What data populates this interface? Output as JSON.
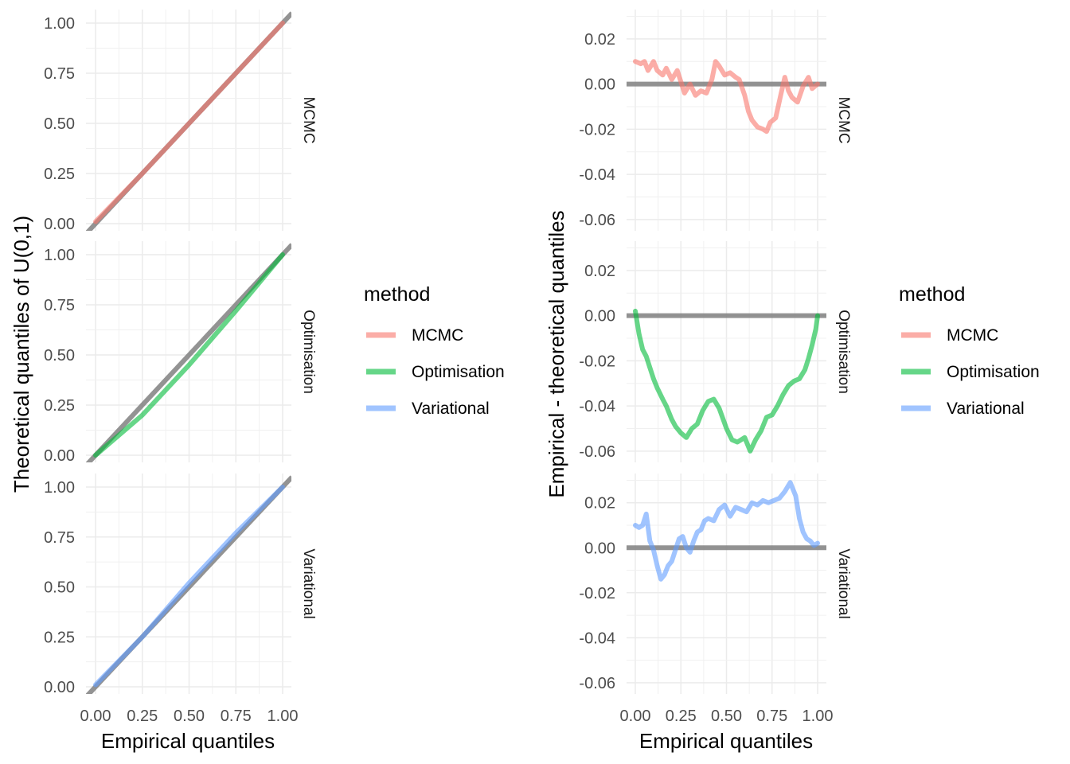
{
  "chart_data": [
    {
      "type": "line",
      "title": "",
      "xlabel": "Empirical quantiles",
      "ylabel": "Theoretical quantiles of U(0,1)",
      "xlim": [
        0,
        1
      ],
      "ylim": [
        0,
        1
      ],
      "x_ticks": [
        "0.00",
        "0.25",
        "0.50",
        "0.75",
        "1.00"
      ],
      "y_ticks": [
        "0.00",
        "0.25",
        "0.50",
        "0.75",
        "1.00"
      ],
      "facets": [
        "MCMC",
        "Optimisation",
        "Variational"
      ],
      "reference_line": "y = x",
      "grid": true,
      "legend": {
        "title": "method",
        "position": "right",
        "entries": [
          "MCMC",
          "Optimisation",
          "Variational"
        ]
      },
      "series": [
        {
          "name": "MCMC",
          "facet": "MCMC",
          "color": "#F8766D",
          "x": [
            0,
            0.25,
            0.5,
            0.75,
            1.0
          ],
          "y": [
            0.01,
            0.25,
            0.5,
            0.75,
            1.0
          ]
        },
        {
          "name": "Optimisation",
          "facet": "Optimisation",
          "color": "#00BA38",
          "x": [
            0,
            0.25,
            0.5,
            0.75,
            1.0
          ],
          "y": [
            0.0,
            0.2,
            0.45,
            0.72,
            1.0
          ]
        },
        {
          "name": "Variational",
          "facet": "Variational",
          "color": "#619CFF",
          "x": [
            0,
            0.25,
            0.5,
            0.75,
            1.0
          ],
          "y": [
            0.01,
            0.25,
            0.52,
            0.77,
            1.0
          ]
        }
      ]
    },
    {
      "type": "line",
      "title": "",
      "xlabel": "Empirical quantiles",
      "ylabel": "Empirical - theoretical quantiles",
      "xlim": [
        0,
        1
      ],
      "ylim": [
        -0.065,
        0.033
      ],
      "x_ticks": [
        "0.00",
        "0.25",
        "0.50",
        "0.75",
        "1.00"
      ],
      "y_ticks": [
        "-0.06",
        "-0.04",
        "-0.02",
        "0.00",
        "0.02"
      ],
      "facets": [
        "MCMC",
        "Optimisation",
        "Variational"
      ],
      "reference_line": "y = 0",
      "grid": true,
      "legend": {
        "title": "method",
        "position": "right",
        "entries": [
          "MCMC",
          "Optimisation",
          "Variational"
        ]
      },
      "series": [
        {
          "name": "MCMC",
          "facet": "MCMC",
          "color": "#F8766D",
          "x": [
            0.0,
            0.03,
            0.05,
            0.07,
            0.1,
            0.12,
            0.15,
            0.17,
            0.2,
            0.23,
            0.25,
            0.27,
            0.3,
            0.33,
            0.36,
            0.39,
            0.42,
            0.44,
            0.46,
            0.49,
            0.52,
            0.55,
            0.57,
            0.6,
            0.62,
            0.64,
            0.67,
            0.7,
            0.72,
            0.74,
            0.77,
            0.8,
            0.82,
            0.84,
            0.86,
            0.89,
            0.92,
            0.95,
            0.97,
            1.0
          ],
          "y": [
            0.01,
            0.009,
            0.01,
            0.006,
            0.01,
            0.006,
            0.004,
            0.007,
            0.002,
            0.006,
            0.001,
            -0.004,
            0.0,
            -0.005,
            -0.003,
            -0.004,
            0.002,
            0.01,
            0.008,
            0.004,
            0.005,
            0.003,
            0.002,
            -0.005,
            -0.012,
            -0.016,
            -0.019,
            -0.02,
            -0.021,
            -0.017,
            -0.015,
            -0.004,
            0.003,
            -0.003,
            -0.006,
            -0.008,
            -0.001,
            0.003,
            -0.002,
            0.0
          ]
        },
        {
          "name": "Optimisation",
          "facet": "Optimisation",
          "color": "#00BA38",
          "x": [
            0.0,
            0.02,
            0.04,
            0.06,
            0.08,
            0.1,
            0.12,
            0.15,
            0.17,
            0.2,
            0.22,
            0.25,
            0.28,
            0.31,
            0.34,
            0.37,
            0.4,
            0.43,
            0.46,
            0.5,
            0.53,
            0.56,
            0.6,
            0.63,
            0.66,
            0.69,
            0.72,
            0.75,
            0.78,
            0.81,
            0.84,
            0.87,
            0.9,
            0.93,
            0.95,
            0.97,
            0.99,
            1.0
          ],
          "y": [
            0.002,
            -0.008,
            -0.015,
            -0.018,
            -0.023,
            -0.028,
            -0.032,
            -0.037,
            -0.04,
            -0.046,
            -0.049,
            -0.052,
            -0.054,
            -0.05,
            -0.048,
            -0.042,
            -0.038,
            -0.037,
            -0.041,
            -0.05,
            -0.055,
            -0.056,
            -0.054,
            -0.06,
            -0.055,
            -0.051,
            -0.045,
            -0.044,
            -0.04,
            -0.035,
            -0.031,
            -0.029,
            -0.028,
            -0.024,
            -0.019,
            -0.013,
            -0.006,
            0.0
          ]
        },
        {
          "name": "Variational",
          "facet": "Variational",
          "color": "#619CFF",
          "x": [
            0.0,
            0.02,
            0.04,
            0.06,
            0.08,
            0.1,
            0.12,
            0.14,
            0.16,
            0.18,
            0.2,
            0.22,
            0.24,
            0.26,
            0.28,
            0.3,
            0.32,
            0.34,
            0.36,
            0.38,
            0.4,
            0.43,
            0.46,
            0.49,
            0.52,
            0.55,
            0.58,
            0.61,
            0.64,
            0.67,
            0.7,
            0.73,
            0.76,
            0.79,
            0.82,
            0.85,
            0.88,
            0.9,
            0.92,
            0.94,
            0.96,
            0.98,
            1.0
          ],
          "y": [
            0.01,
            0.009,
            0.01,
            0.015,
            0.003,
            -0.001,
            -0.008,
            -0.014,
            -0.012,
            -0.008,
            -0.006,
            -0.001,
            0.004,
            0.005,
            0.0,
            -0.002,
            0.003,
            0.007,
            0.008,
            0.012,
            0.013,
            0.012,
            0.017,
            0.019,
            0.014,
            0.018,
            0.017,
            0.016,
            0.02,
            0.019,
            0.021,
            0.02,
            0.021,
            0.022,
            0.025,
            0.029,
            0.023,
            0.013,
            0.007,
            0.004,
            0.003,
            0.001,
            0.002
          ]
        }
      ]
    }
  ]
}
